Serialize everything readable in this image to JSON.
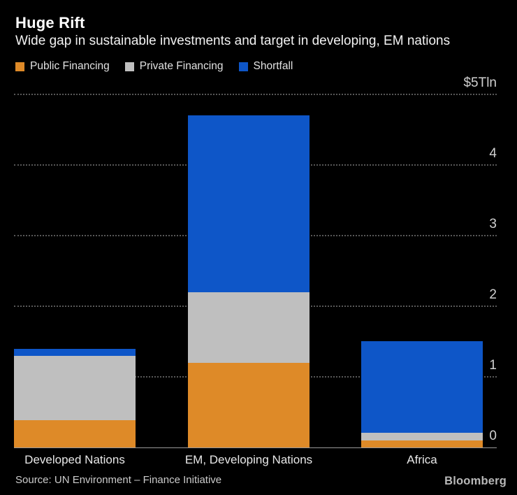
{
  "header": {
    "title": "Huge Rift",
    "subtitle": "Wide gap in sustainable investments and target in developing, EM nations"
  },
  "chart_data": {
    "type": "bar",
    "stacked": true,
    "title": "Huge Rift",
    "subtitle": "Wide gap in sustainable investments and target in developing, EM nations",
    "unit": "$Tln",
    "categories": [
      "Developed Nations",
      "EM, Developing Nations",
      "Africa"
    ],
    "series": [
      {
        "name": "Public Financing",
        "color": "#de8a28",
        "values": [
          0.39,
          1.2,
          0.1
        ]
      },
      {
        "name": "Private Financing",
        "color": "#bfbfbf",
        "values": [
          0.91,
          1.0,
          0.11
        ]
      },
      {
        "name": "Shortfall",
        "color": "#0e56c8",
        "values": [
          0.1,
          2.5,
          1.3
        ]
      }
    ],
    "totals": [
      1.4,
      4.7,
      1.51
    ],
    "ylim": [
      0,
      5
    ],
    "yticks": [
      0,
      1,
      2,
      3,
      4,
      5
    ],
    "ytick_labels": [
      "0",
      "1",
      "2",
      "3",
      "4",
      "$5Tln"
    ],
    "grid": "horizontal-dotted",
    "legend_position": "top-left",
    "xlabel": "",
    "ylabel": "$Tln"
  },
  "footer": {
    "source": "Source: UN Environment – Finance Initiative",
    "brand": "Bloomberg"
  },
  "colors": {
    "background": "#000000",
    "text_primary": "#ffffff",
    "text_secondary": "#cccccc",
    "gridline": "#585858",
    "axis_line": "#9a9a9a",
    "public_financing": "#de8a28",
    "private_financing": "#bfbfbf",
    "shortfall": "#0e56c8"
  }
}
